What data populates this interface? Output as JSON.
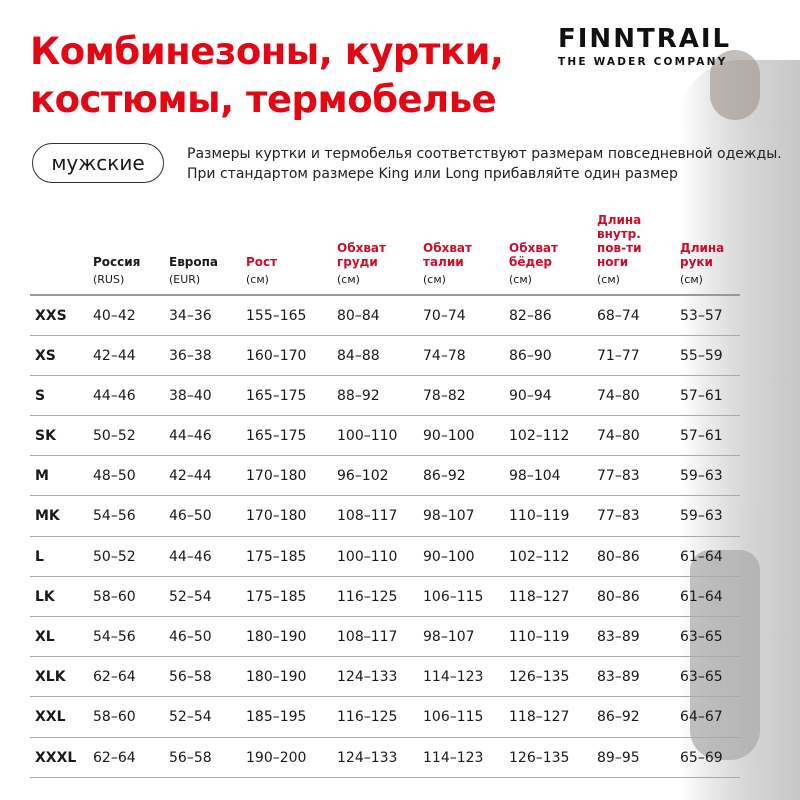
{
  "title": [
    "Комбинезоны, куртки,",
    "костюмы, термобелье"
  ],
  "logo": {
    "brand": "FINNTRAIL",
    "tagline": "THE WADER COMPANY"
  },
  "category": "мужские",
  "note": "Размеры куртки и термобелья соответствуют размерам повседневной одежды. При стандартом размере King или Long прибавляйте один размер",
  "accent_color": "#e30613",
  "columns": [
    {
      "label": "",
      "unit": ""
    },
    {
      "label": "Россия",
      "unit": "(RUS)",
      "red": false
    },
    {
      "label": "Европа",
      "unit": "(EUR)",
      "red": false
    },
    {
      "label": "Рост",
      "unit": "(см)",
      "red": true
    },
    {
      "label": "Обхват груди",
      "unit": "(см)",
      "red": true
    },
    {
      "label": "Обхват талии",
      "unit": "(см)",
      "red": true
    },
    {
      "label": "Обхват бёдер",
      "unit": "(см)",
      "red": true
    },
    {
      "label": "Длина внутр. пов-ти ноги",
      "unit": "(см)",
      "red": true
    },
    {
      "label": "Длина руки",
      "unit": "(см)",
      "red": true
    }
  ],
  "rows": [
    [
      "XXS",
      "40–42",
      "34–36",
      "155–165",
      "80–84",
      "70–74",
      "82–86",
      "68–74",
      "53–57"
    ],
    [
      "XS",
      "42–44",
      "36–38",
      "160–170",
      "84–88",
      "74–78",
      "86–90",
      "71–77",
      "55–59"
    ],
    [
      "S",
      "44–46",
      "38–40",
      "165–175",
      "88–92",
      "78–82",
      "90–94",
      "74–80",
      "57–61"
    ],
    [
      "SK",
      "50–52",
      "44–46",
      "165–175",
      "100–110",
      "90–100",
      "102–112",
      "74–80",
      "57–61"
    ],
    [
      "M",
      "48–50",
      "42–44",
      "170–180",
      "96–102",
      "86–92",
      "98–104",
      "77–83",
      "59–63"
    ],
    [
      "MK",
      "54–56",
      "46–50",
      "170–180",
      "108–117",
      "98–107",
      "110–119",
      "77–83",
      "59–63"
    ],
    [
      "L",
      "50–52",
      "44–46",
      "175–185",
      "100–110",
      "90–100",
      "102–112",
      "80–86",
      "61–64"
    ],
    [
      "LK",
      "58–60",
      "52–54",
      "175–185",
      "116–125",
      "106–115",
      "118–127",
      "80–86",
      "61–64"
    ],
    [
      "XL",
      "54–56",
      "46–50",
      "180–190",
      "108–117",
      "98–107",
      "110–119",
      "83–89",
      "63–65"
    ],
    [
      "XLK",
      "62–64",
      "56–58",
      "180–190",
      "124–133",
      "114–123",
      "126–135",
      "83–89",
      "63–65"
    ],
    [
      "XXL",
      "58–60",
      "52–54",
      "185–195",
      "116–125",
      "106–115",
      "118–127",
      "86–92",
      "64–67"
    ],
    [
      "XXXL",
      "62–64",
      "56–58",
      "190–200",
      "124–133",
      "114–123",
      "126–135",
      "89–95",
      "65–69"
    ]
  ]
}
